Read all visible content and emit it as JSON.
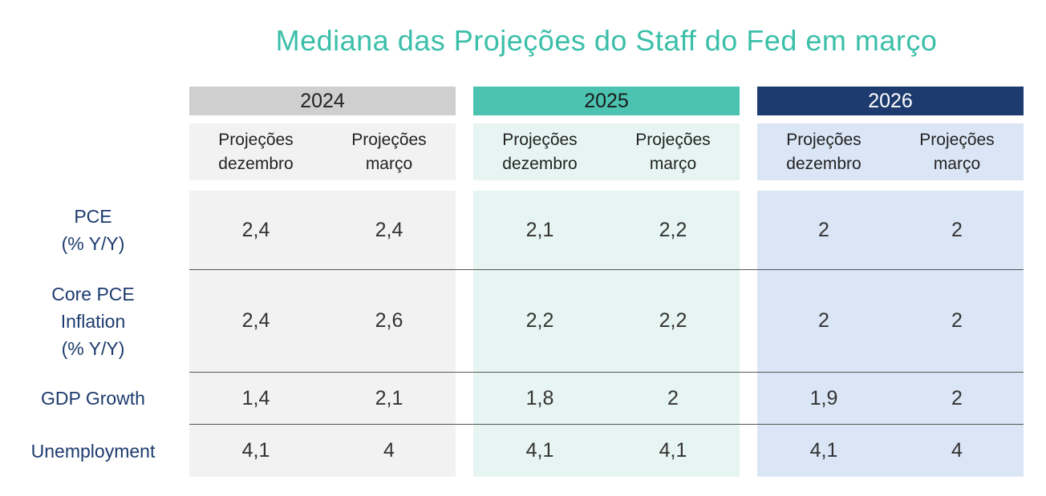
{
  "chart_data": {
    "type": "table",
    "title": "Mediana das Projeções do Staff do Fed em março",
    "colors": {
      "title": "#3bbfa8",
      "y2024_header": "#cfcfcf",
      "y2025_header": "#4bc3b0",
      "y2026_header": "#1d3b6e",
      "y2024_body": "#f2f2f2",
      "y2025_body": "#e6f5f2",
      "y2026_body": "#dae5f5",
      "row_label": "#1d3b6e"
    },
    "years": [
      {
        "label": "2024",
        "subcolumns": [
          {
            "l1": "Projeções",
            "l2": "dezembro"
          },
          {
            "l1": "Projeções",
            "l2": "março"
          }
        ]
      },
      {
        "label": "2025",
        "subcolumns": [
          {
            "l1": "Projeções",
            "l2": "dezembro"
          },
          {
            "l1": "Projeções",
            "l2": "março"
          }
        ]
      },
      {
        "label": "2026",
        "subcolumns": [
          {
            "l1": "Projeções",
            "l2": "dezembro"
          },
          {
            "l1": "Projeções",
            "l2": "março"
          }
        ]
      }
    ],
    "rows": [
      {
        "lines": [
          "PCE",
          "(% Y/Y)"
        ],
        "values": [
          "2,4",
          "2,4",
          "2,1",
          "2,2",
          "2",
          "2"
        ]
      },
      {
        "lines": [
          "Core PCE",
          "Inflation",
          "(% Y/Y)"
        ],
        "values": [
          "2,4",
          "2,6",
          "2,2",
          "2,2",
          "2",
          "2"
        ]
      },
      {
        "lines": [
          "GDP Growth"
        ],
        "values": [
          "1,4",
          "2,1",
          "1,8",
          "2",
          "1,9",
          "2"
        ]
      },
      {
        "lines": [
          "Unemployment"
        ],
        "values": [
          "4,1",
          "4",
          "4,1",
          "4,1",
          "4,1",
          "4"
        ]
      }
    ]
  }
}
